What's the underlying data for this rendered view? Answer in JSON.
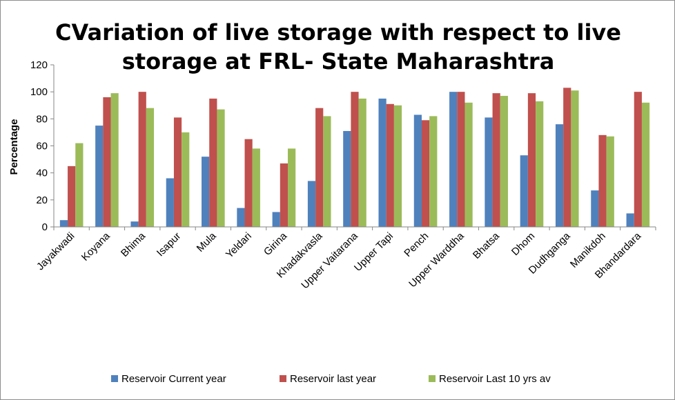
{
  "chart_data": {
    "type": "bar",
    "title_lines": [
      "CVariation of live storage with respect to live",
      "storage at FRL- State Maharashtra"
    ],
    "xlabel": "",
    "ylabel": "Percentage",
    "ylim": [
      0,
      120
    ],
    "yticks": [
      0,
      20,
      40,
      60,
      80,
      100,
      120
    ],
    "grid": false,
    "legend_position": "bottom",
    "categories": [
      "Jayakwadi",
      "Koyana",
      "Bhima",
      "Isapur",
      "Mula",
      "Yeldari",
      "Girina",
      "Khadakvasla",
      "Upper Vaitarana",
      "Upper Tapi",
      "Pench",
      "Upper Warddha",
      "Bhatsa",
      "Dhom",
      "Dudhganga",
      "Manikdoh",
      "Bhandardara"
    ],
    "series": [
      {
        "name": "Reservoir Current year",
        "color": "#4f81bd",
        "values": [
          5,
          75,
          4,
          36,
          52,
          14,
          11,
          34,
          71,
          95,
          83,
          100,
          81,
          53,
          76,
          27,
          10
        ]
      },
      {
        "name": "Reservoir last year",
        "color": "#c0504d",
        "values": [
          45,
          96,
          100,
          81,
          95,
          65,
          47,
          88,
          100,
          91,
          79,
          100,
          99,
          99,
          103,
          68,
          100
        ]
      },
      {
        "name": "Reservoir Last 10 yrs av",
        "color": "#9bbb59",
        "values": [
          62,
          99,
          88,
          70,
          87,
          58,
          58,
          82,
          95,
          90,
          82,
          92,
          97,
          93,
          101,
          67,
          92
        ]
      }
    ]
  }
}
